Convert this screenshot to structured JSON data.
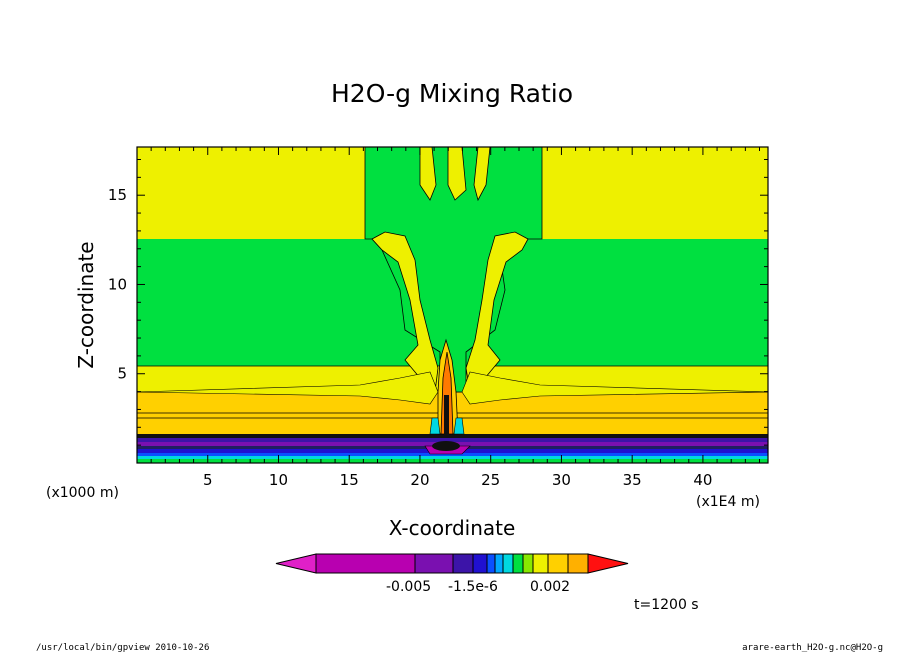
{
  "chart_data": {
    "type": "heatmap",
    "title": "H2O-g Mixing Ratio",
    "xlabel": "X-coordinate",
    "ylabel": "Z-coordinate",
    "x_unit_label": "(x1E4 m)",
    "y_unit_label": "(x1000 m)",
    "xlim": [
      0,
      44.6
    ],
    "ylim": [
      0,
      17.7
    ],
    "x_ticks": [
      5,
      10,
      15,
      20,
      25,
      30,
      35,
      40
    ],
    "y_ticks": [
      5,
      10,
      15
    ],
    "colorbar": {
      "tick_labels": [
        "-0.005",
        "-1.5e-6",
        "0.002"
      ],
      "colors": [
        "#e020c8",
        "#b800b0",
        "#7a10b0",
        "#3c14a8",
        "#2010d0",
        "#0a50ff",
        "#00a8ff",
        "#00d8e0",
        "#00e040",
        "#88e800",
        "#eef000",
        "#ffd000",
        "#ffb000",
        "#ff7a00",
        "#ff1010"
      ]
    },
    "annotation": "t=1200 s",
    "footer_left": "/usr/local/bin/gpview  2010-10-26",
    "footer_right": "arare-earth_H2O-g.nc@H2O-g"
  }
}
